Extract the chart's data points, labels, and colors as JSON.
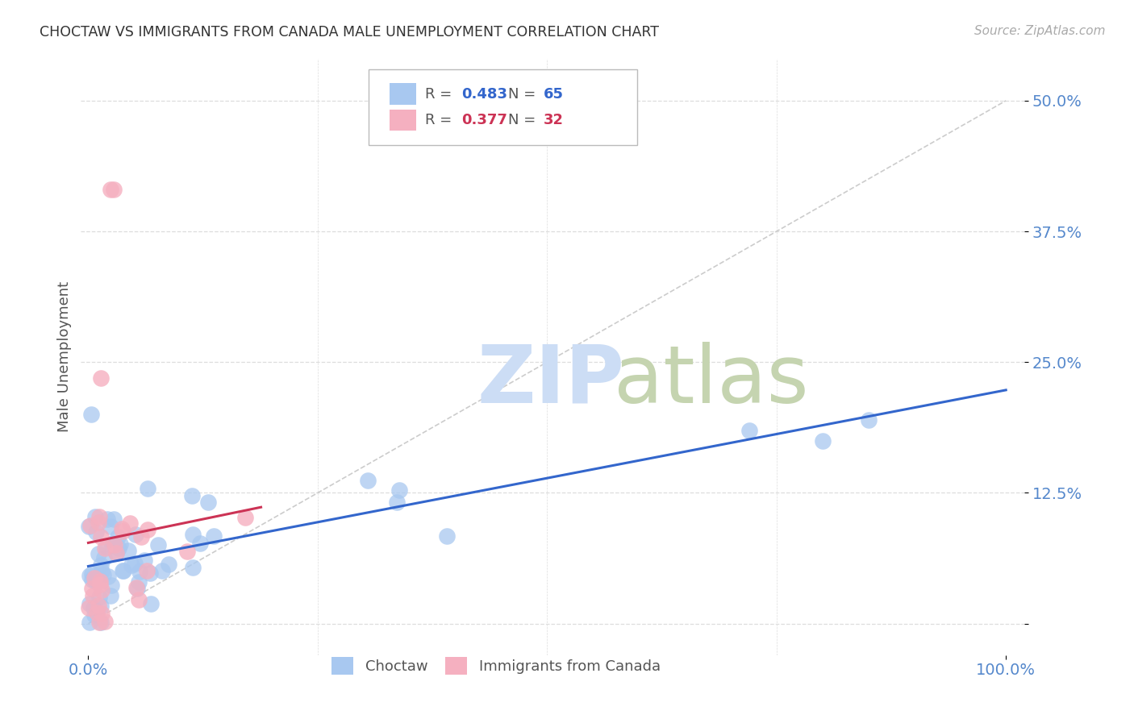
{
  "title": "CHOCTAW VS IMMIGRANTS FROM CANADA MALE UNEMPLOYMENT CORRELATION CHART",
  "source": "Source: ZipAtlas.com",
  "ylabel": "Male Unemployment",
  "xlim": [
    0.0,
    1.0
  ],
  "ylim": [
    -0.03,
    0.54
  ],
  "yticks": [
    0.0,
    0.125,
    0.25,
    0.375,
    0.5
  ],
  "ytick_labels": [
    "",
    "12.5%",
    "25.0%",
    "37.5%",
    "50.0%"
  ],
  "xtick_labels": [
    "0.0%",
    "100.0%"
  ],
  "choctaw_R": 0.483,
  "choctaw_N": 65,
  "canada_R": 0.377,
  "canada_N": 32,
  "choctaw_color": "#A8C8F0",
  "canada_color": "#F5B0C0",
  "choctaw_line_color": "#3366CC",
  "canada_line_color": "#CC3355",
  "legend_choctaw_label": "Choctaw",
  "legend_canada_label": "Immigrants from Canada",
  "background_color": "#ffffff",
  "axis_label_color": "#5588CC",
  "title_color": "#333333",
  "grid_color": "#dddddd",
  "source_color": "#aaaaaa"
}
